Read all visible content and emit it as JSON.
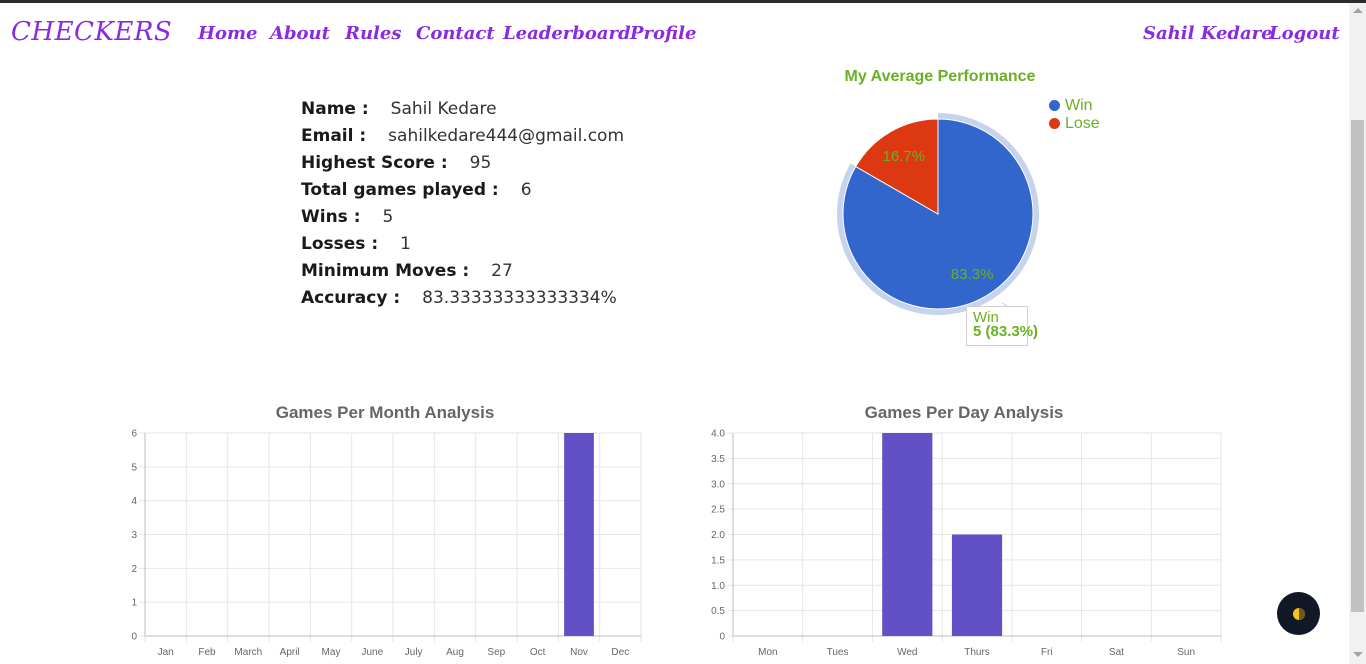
{
  "nav": {
    "brand": "CHECKERS",
    "links": [
      "Home",
      "About",
      "Rules",
      "Contact",
      "Leaderboard",
      "Profile"
    ],
    "user": "Sahil Kedare",
    "logout": "Logout"
  },
  "profile": {
    "rows": [
      {
        "key": "Name :",
        "value": "Sahil Kedare"
      },
      {
        "key": "Email :",
        "value": "sahilkedare444@gmail.com"
      },
      {
        "key": "Highest Score :",
        "value": "95"
      },
      {
        "key": "Total games played :",
        "value": "6"
      },
      {
        "key": "Wins :",
        "value": "5"
      },
      {
        "key": "Losses :",
        "value": "1"
      },
      {
        "key": "Minimum Moves :",
        "value": "27"
      },
      {
        "key": "Accuracy :",
        "value": "83.33333333333334%"
      }
    ]
  },
  "colors": {
    "accent": "#8a2be2",
    "win": "#3366cc",
    "lose": "#dc3912",
    "bar": "#6250c6",
    "label": "#6ab023"
  },
  "icons": {
    "fab": "theme-toggle-icon"
  },
  "chart_data": [
    {
      "type": "pie",
      "title": "My Average Performance",
      "categories": [
        "Win",
        "Lose"
      ],
      "values": [
        5,
        1
      ],
      "labels": [
        "83.3%",
        "16.7%"
      ],
      "legend": "top-right",
      "tooltip": {
        "label": "Win",
        "value": "5 (83.3%)"
      }
    },
    {
      "type": "bar",
      "title": "Games Per Month Analysis",
      "categories": [
        "Jan",
        "Feb",
        "March",
        "April",
        "May",
        "June",
        "July",
        "Aug",
        "Sep",
        "Oct",
        "Nov",
        "Dec"
      ],
      "values": [
        0,
        0,
        0,
        0,
        0,
        0,
        0,
        0,
        0,
        0,
        6,
        0
      ],
      "ylim": [
        0,
        6
      ],
      "yticks": [
        "0",
        "1",
        "2",
        "3",
        "4",
        "5",
        "6"
      ],
      "grid": true
    },
    {
      "type": "bar",
      "title": "Games Per Day Analysis",
      "categories": [
        "Mon",
        "Tues",
        "Wed",
        "Thurs",
        "Fri",
        "Sat",
        "Sun"
      ],
      "values": [
        0,
        0,
        4,
        2,
        0,
        0,
        0
      ],
      "ylim": [
        0,
        4
      ],
      "yticks": [
        "0",
        "0.5",
        "1.0",
        "1.5",
        "2.0",
        "2.5",
        "3.0",
        "3.5",
        "4.0"
      ],
      "grid": true
    }
  ]
}
